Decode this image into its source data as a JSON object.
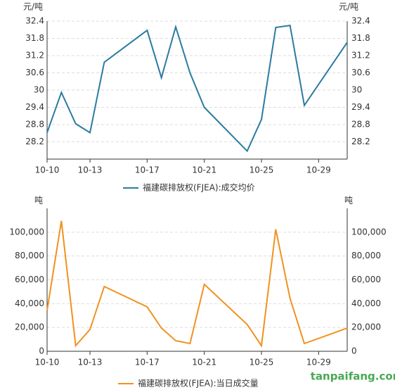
{
  "chart_data": [
    {
      "type": "line",
      "y_unit": "元/吨",
      "x": [
        "10-10",
        "10-11",
        "10-12",
        "10-13",
        "10-14",
        "10-17",
        "10-18",
        "10-19",
        "10-20",
        "10-21",
        "10-24",
        "10-25",
        "10-26",
        "10-27",
        "10-28",
        "10-31"
      ],
      "xlim": [
        "10-10",
        "10-31"
      ],
      "xticks": [
        "10-10",
        "10-13",
        "10-17",
        "10-21",
        "10-25",
        "10-29"
      ],
      "ylim": [
        27.6,
        32.4
      ],
      "yticks": [
        28.2,
        28.8,
        29.4,
        30,
        30.6,
        31.2,
        31.8,
        32.4
      ],
      "grid": true,
      "series": [
        {
          "name": "福建碳排放权(FJEA):成交均价",
          "color": "#2b7ba0",
          "values": [
            28.52,
            29.92,
            28.83,
            28.52,
            30.97,
            32.08,
            30.43,
            32.2,
            30.6,
            29.4,
            27.88,
            28.98,
            32.18,
            32.25,
            29.47,
            31.66
          ]
        }
      ]
    },
    {
      "type": "line",
      "y_unit": "吨",
      "x": [
        "10-10",
        "10-11",
        "10-12",
        "10-13",
        "10-14",
        "10-17",
        "10-18",
        "10-19",
        "10-20",
        "10-21",
        "10-24",
        "10-25",
        "10-26",
        "10-27",
        "10-28",
        "10-31"
      ],
      "xlim": [
        "10-10",
        "10-31"
      ],
      "xticks": [
        "10-10",
        "10-13",
        "10-17",
        "10-21",
        "10-25",
        "10-29"
      ],
      "ylim": [
        0,
        120000
      ],
      "yticks": [
        0,
        {
          "value": 20000,
          "label": "20,000"
        },
        {
          "value": 40000,
          "label": "40,000"
        },
        {
          "value": 60000,
          "label": "60,000"
        },
        {
          "value": 80000,
          "label": "80,000"
        },
        {
          "value": 100000,
          "label": "100,000"
        }
      ],
      "grid": true,
      "series": [
        {
          "name": "福建碳排放权(FJEA):当日成交量",
          "color": "#f0921e",
          "values": [
            34300,
            109500,
            4700,
            18300,
            54400,
            37300,
            19500,
            8900,
            6500,
            56200,
            22500,
            4700,
            102400,
            44400,
            6500,
            19500
          ]
        }
      ]
    }
  ],
  "watermark": "tanpaifang.com"
}
